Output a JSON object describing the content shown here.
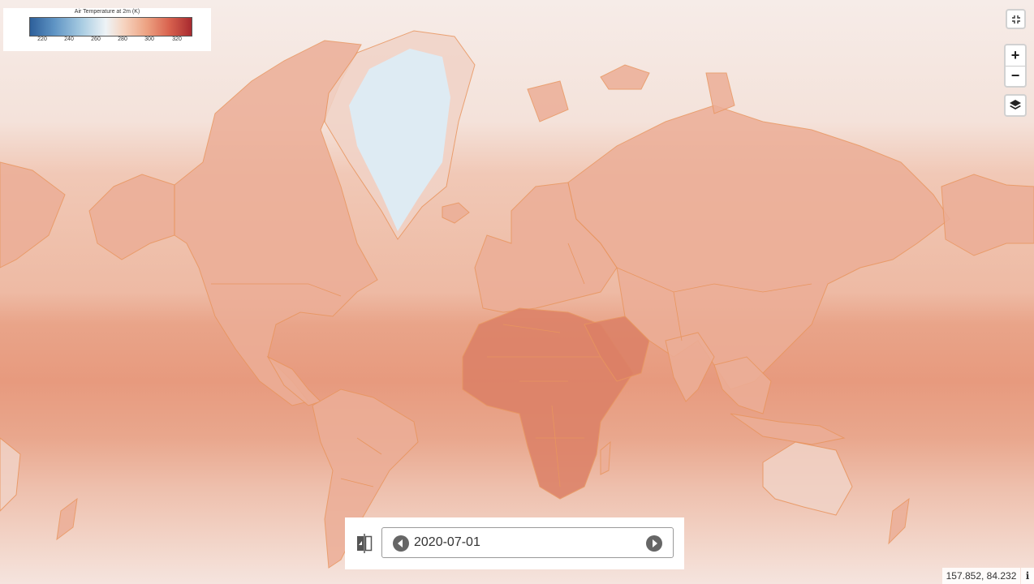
{
  "legend": {
    "title": "Air Temperature at 2m (K)",
    "ticks": [
      "220",
      "240",
      "260",
      "280",
      "300",
      "320"
    ],
    "colors": {
      "cold": "#2d5f9a",
      "neutral": "#eef3f6",
      "hot": "#a82a2f"
    }
  },
  "controls": {
    "fullscreen_icon": "collapse-icon",
    "zoom_in_label": "+",
    "zoom_out_label": "−",
    "layers_icon": "layers-icon"
  },
  "date_control": {
    "compare_icon": "compare-icon",
    "prev_icon": "chevron-left-icon",
    "next_icon": "chevron-right-icon",
    "date": "2020-07-01"
  },
  "status": {
    "coordinates": "157.852, 84.232",
    "info_label": "i"
  },
  "map": {
    "land_outline_color": "#e8955f",
    "ice_color": "#deebf3"
  }
}
